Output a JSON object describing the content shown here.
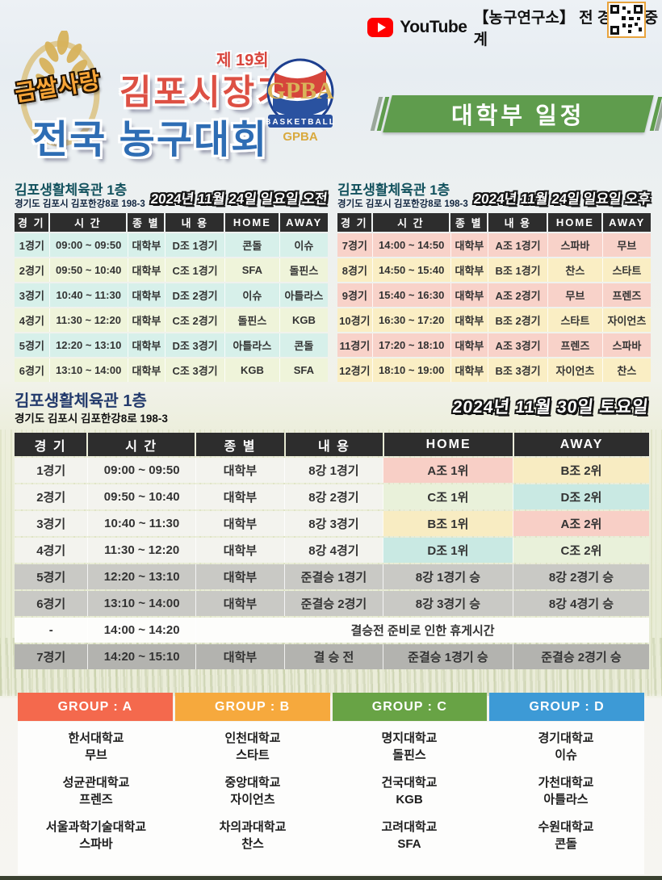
{
  "topbar": {
    "youtube_label": "YouTube",
    "broadcast_text": "【농구연구소】 전 경기 생중계"
  },
  "header": {
    "ribbon": "금쌀사랑",
    "edition": "제 19회",
    "title_line1": "김포시장기",
    "title_line2": "전국 농구대회",
    "logo_banner": "BASKETBALL",
    "logo_text": "GPBA",
    "division_banner": "대학부 일정"
  },
  "colors": {
    "banner_green": "#5f9c4d",
    "group_a": "#f4694d",
    "group_b": "#f6a93d",
    "group_c": "#68a345",
    "group_d": "#3d9ad6",
    "row_cyan": "#d7f0ea",
    "row_green": "#eff4da",
    "row_pink": "#f8d2c9",
    "row_yellow": "#faeec4",
    "row_light": "#f3f3ee",
    "row_gray": "#c9c9c5",
    "row_darkgray": "#b3b3af",
    "row_white": "#fdfdfb",
    "header_dark": "#2d2d2d"
  },
  "tables": [
    {
      "venue": "김포생활체육관 1층",
      "address": "경기도 김포시 김포한강8로 198-3",
      "date": "2024년 11월 24일 일요일 오전",
      "headers": [
        "경 기",
        "시 간",
        "종 별",
        "내 용",
        "HOME",
        "AWAY"
      ],
      "rows": [
        {
          "game": "1경기",
          "time": "09:00 ~ 09:50",
          "division": "대학부",
          "content": "D조 1경기",
          "home": "콘돌",
          "away": "이슈",
          "bg": "#d7f0ea"
        },
        {
          "game": "2경기",
          "time": "09:50 ~ 10:40",
          "division": "대학부",
          "content": "C조 1경기",
          "home": "SFA",
          "away": "돌핀스",
          "bg": "#eff4da"
        },
        {
          "game": "3경기",
          "time": "10:40 ~ 11:30",
          "division": "대학부",
          "content": "D조 2경기",
          "home": "이슈",
          "away": "아틀라스",
          "bg": "#d7f0ea"
        },
        {
          "game": "4경기",
          "time": "11:30 ~ 12:20",
          "division": "대학부",
          "content": "C조 2경기",
          "home": "돌핀스",
          "away": "KGB",
          "bg": "#eff4da"
        },
        {
          "game": "5경기",
          "time": "12:20 ~ 13:10",
          "division": "대학부",
          "content": "D조 3경기",
          "home": "아틀라스",
          "away": "콘돌",
          "bg": "#d7f0ea"
        },
        {
          "game": "6경기",
          "time": "13:10 ~ 14:00",
          "division": "대학부",
          "content": "C조 3경기",
          "home": "KGB",
          "away": "SFA",
          "bg": "#eff4da"
        }
      ]
    },
    {
      "venue": "김포생활체육관 1층",
      "address": "경기도 김포시 김포한강8로 198-3",
      "date": "2024년 11월 24일 일요일 오후",
      "headers": [
        "경 기",
        "시 간",
        "종 별",
        "내 용",
        "HOME",
        "AWAY"
      ],
      "rows": [
        {
          "game": "7경기",
          "time": "14:00 ~ 14:50",
          "division": "대학부",
          "content": "A조 1경기",
          "home": "스파바",
          "away": "무브",
          "bg": "#f8d2c9"
        },
        {
          "game": "8경기",
          "time": "14:50 ~ 15:40",
          "division": "대학부",
          "content": "B조 1경기",
          "home": "찬스",
          "away": "스타트",
          "bg": "#faeec4"
        },
        {
          "game": "9경기",
          "time": "15:40 ~ 16:30",
          "division": "대학부",
          "content": "A조 2경기",
          "home": "무브",
          "away": "프렌즈",
          "bg": "#f8d2c9"
        },
        {
          "game": "10경기",
          "time": "16:30 ~ 17:20",
          "division": "대학부",
          "content": "B조 2경기",
          "home": "스타트",
          "away": "자이언츠",
          "bg": "#faeec4"
        },
        {
          "game": "11경기",
          "time": "17:20 ~ 18:10",
          "division": "대학부",
          "content": "A조 3경기",
          "home": "프렌즈",
          "away": "스파바",
          "bg": "#f8d2c9"
        },
        {
          "game": "12경기",
          "time": "18:10 ~ 19:00",
          "division": "대학부",
          "content": "B조 3경기",
          "home": "자이언츠",
          "away": "찬스",
          "bg": "#faeec4"
        }
      ]
    },
    {
      "venue": "김포생활체육관 1층",
      "address": "경기도 김포시 김포한강8로 198-3",
      "date": "2024년 11월 30일 토요일",
      "headers": [
        "경 기",
        "시 간",
        "종 별",
        "내 용",
        "HOME",
        "AWAY"
      ],
      "rows": [
        {
          "game": "1경기",
          "time": "09:00 ~ 09:50",
          "division": "대학부",
          "content": "8강 1경기",
          "home": "A조 1위",
          "away": "B조 2위",
          "bg": "#f3f3ee",
          "home_bg": "#f8cfc6",
          "away_bg": "#f8ecc2"
        },
        {
          "game": "2경기",
          "time": "09:50 ~ 10:40",
          "division": "대학부",
          "content": "8강 2경기",
          "home": "C조 1위",
          "away": "D조 2위",
          "bg": "#f3f3ee",
          "home_bg": "#e9f1da",
          "away_bg": "#c9e9e3"
        },
        {
          "game": "3경기",
          "time": "10:40 ~ 11:30",
          "division": "대학부",
          "content": "8강 3경기",
          "home": "B조 1위",
          "away": "A조 2위",
          "bg": "#f3f3ee",
          "home_bg": "#f8ecc2",
          "away_bg": "#f8cfc6"
        },
        {
          "game": "4경기",
          "time": "11:30 ~ 12:20",
          "division": "대학부",
          "content": "8강 4경기",
          "home": "D조 1위",
          "away": "C조 2위",
          "bg": "#f3f3ee",
          "home_bg": "#c9e9e3",
          "away_bg": "#e9f1da"
        },
        {
          "game": "5경기",
          "time": "12:20 ~ 13:10",
          "division": "대학부",
          "content": "준결승 1경기",
          "home": "8강 1경기 승",
          "away": "8강 2경기 승",
          "bg": "#c9c9c5"
        },
        {
          "game": "6경기",
          "time": "13:10 ~ 14:00",
          "division": "대학부",
          "content": "준결승 2경기",
          "home": "8강 3경기 승",
          "away": "8강 4경기 승",
          "bg": "#c9c9c5"
        },
        {
          "game": "-",
          "time": "14:00 ~ 14:20",
          "break": true,
          "break_text": "결승전 준비로 인한 휴게시간",
          "bg": "#fdfdfb"
        },
        {
          "game": "7경기",
          "time": "14:20 ~ 15:10",
          "division": "대학부",
          "content": "결 승 전",
          "home": "준결승 1경기 승",
          "away": "준결승 2경기 승",
          "bg": "#b3b3af"
        }
      ]
    }
  ],
  "groups": [
    {
      "label": "GROUP : A",
      "color": "#f4694d",
      "teams": [
        {
          "university": "한서대학교",
          "team": "무브"
        },
        {
          "university": "성균관대학교",
          "team": "프렌즈"
        },
        {
          "university": "서울과학기술대학교",
          "team": "스파바"
        }
      ]
    },
    {
      "label": "GROUP : B",
      "color": "#f6a93d",
      "teams": [
        {
          "university": "인천대학교",
          "team": "스타트"
        },
        {
          "university": "중앙대학교",
          "team": "자이언츠"
        },
        {
          "university": "차의과대학교",
          "team": "찬스"
        }
      ]
    },
    {
      "label": "GROUP : C",
      "color": "#68a345",
      "teams": [
        {
          "university": "명지대학교",
          "team": "돌핀스"
        },
        {
          "university": "건국대학교",
          "team": "KGB"
        },
        {
          "university": "고려대학교",
          "team": "SFA"
        }
      ]
    },
    {
      "label": "GROUP : D",
      "color": "#3d9ad6",
      "teams": [
        {
          "university": "경기대학교",
          "team": "이슈"
        },
        {
          "university": "가천대학교",
          "team": "아틀라스"
        },
        {
          "university": "수원대학교",
          "team": "콘돌"
        }
      ]
    }
  ]
}
